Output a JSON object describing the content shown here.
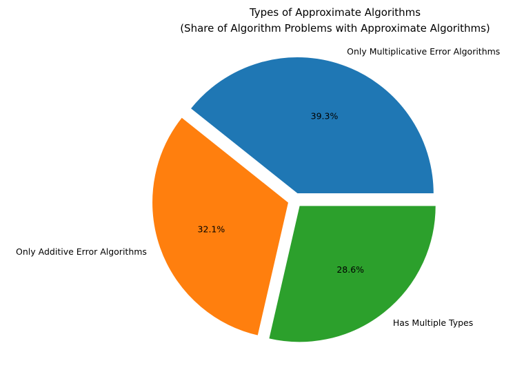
{
  "chart_data": {
    "type": "pie",
    "title": "Types of Approximate Algorithms",
    "subtitle": "(Share of Algorithm Problems with Approximate Algorithms)",
    "slices": [
      {
        "label": "Only Multiplicative Error Algorithms",
        "value": 39.3,
        "pct_text": "39.3%",
        "color": "#1f77b4"
      },
      {
        "label": "Only Additive Error Algorithms",
        "value": 32.1,
        "pct_text": "32.1%",
        "color": "#ff7f0e"
      },
      {
        "label": "Has Multiple Types",
        "value": 28.6,
        "pct_text": "28.6%",
        "color": "#2ca02c"
      }
    ],
    "start_angle_deg": 0,
    "direction": "counterclockwise",
    "exploded": true,
    "legend": "none"
  }
}
